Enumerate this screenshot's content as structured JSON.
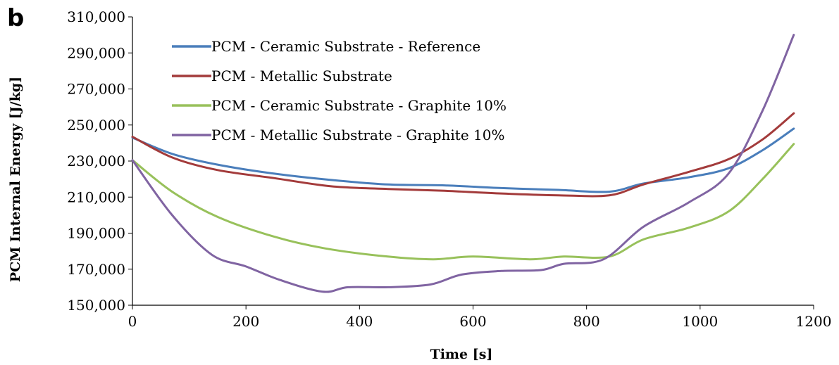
{
  "panel_label": "b",
  "chart_data": {
    "type": "line",
    "title": "",
    "xlabel": "Time [s]",
    "ylabel": "PCM Internal Energy [J/kg]",
    "xlim": [
      0,
      1200
    ],
    "ylim": [
      150000,
      310000
    ],
    "xticks": [
      0,
      200,
      400,
      600,
      800,
      1000,
      1200
    ],
    "xtick_labels": [
      "0",
      "200",
      "400",
      "600",
      "800",
      "1000",
      "1200"
    ],
    "yticks": [
      150000,
      170000,
      190000,
      210000,
      230000,
      250000,
      270000,
      290000,
      310000
    ],
    "ytick_labels": [
      "150,000",
      "170,000",
      "190,000",
      "210,000",
      "230,000",
      "250,000",
      "270,000",
      "290,000",
      "310,000"
    ],
    "grid": false,
    "legend_position": "top-left",
    "series": [
      {
        "name": "PCM - Ceramic Substrate - Reference",
        "color": "#4a7ebb",
        "x": [
          0,
          70,
          150,
          250,
          350,
          450,
          550,
          650,
          750,
          840,
          900,
          980,
          1050,
          1110,
          1165
        ],
        "y": [
          243000,
          234000,
          228000,
          223000,
          219500,
          217000,
          216500,
          215000,
          214000,
          213000,
          217500,
          221000,
          226000,
          236000,
          248000
        ]
      },
      {
        "name": "PCM - Metallic Substrate",
        "color": "#a33b3b",
        "x": [
          0,
          70,
          150,
          250,
          350,
          450,
          550,
          650,
          750,
          840,
          900,
          980,
          1050,
          1110,
          1165
        ],
        "y": [
          243500,
          232000,
          225000,
          220500,
          216000,
          214500,
          213500,
          212000,
          211000,
          211000,
          217000,
          224000,
          231000,
          242000,
          256500
        ]
      },
      {
        "name": "PCM - Ceramic Substrate - Graphite 10%",
        "color": "#98c15b",
        "x": [
          0,
          70,
          150,
          250,
          340,
          450,
          530,
          600,
          700,
          760,
          840,
          900,
          980,
          1050,
          1110,
          1165
        ],
        "y": [
          230500,
          213000,
          199000,
          188000,
          181500,
          177000,
          175500,
          177000,
          175500,
          177000,
          177000,
          186500,
          193000,
          202000,
          220000,
          239500
        ]
      },
      {
        "name": "PCM - Metallic Substrate - Graphite 10%",
        "color": "#8064a2",
        "x": [
          0,
          70,
          140,
          200,
          260,
          335,
          380,
          450,
          525,
          580,
          650,
          720,
          760,
          830,
          900,
          980,
          1050,
          1110,
          1165
        ],
        "y": [
          230500,
          200000,
          178000,
          171500,
          164000,
          157500,
          160000,
          160000,
          161500,
          167000,
          169000,
          169500,
          173000,
          175500,
          193500,
          207000,
          223000,
          258000,
          300000
        ]
      }
    ]
  }
}
